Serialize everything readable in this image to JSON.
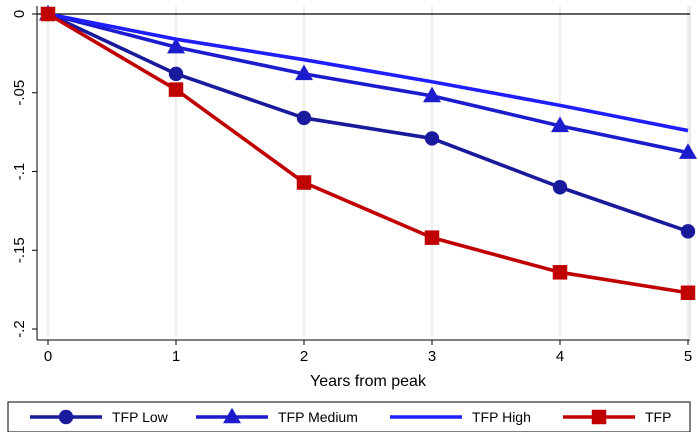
{
  "chart_data": {
    "type": "line",
    "title": "",
    "xlabel": "Years from peak",
    "ylabel": "",
    "x": [
      0,
      1,
      2,
      3,
      4,
      5
    ],
    "xlim": [
      0,
      5
    ],
    "ylim": [
      -0.2,
      0
    ],
    "x_ticks": [
      0,
      1,
      2,
      3,
      4,
      5
    ],
    "x_tick_labels": [
      "0",
      "1",
      "2",
      "3",
      "4",
      "5"
    ],
    "y_ticks": [
      0,
      -0.05,
      -0.1,
      -0.15,
      -0.2
    ],
    "y_tick_labels": [
      "0",
      "-.05",
      "-.1",
      "-.15",
      "-.2"
    ],
    "grid": true,
    "grid_axis": "x",
    "reference_line_y": 0,
    "legend_position": "bottom",
    "series": [
      {
        "name": "TFP Low",
        "values": [
          0,
          -0.038,
          -0.066,
          -0.079,
          -0.11,
          -0.138
        ],
        "color": "#1a1a9c",
        "marker": "circle"
      },
      {
        "name": "TFP Medium",
        "values": [
          0,
          -0.021,
          -0.038,
          -0.052,
          -0.071,
          -0.088
        ],
        "color": "#1c1ccc",
        "marker": "triangle"
      },
      {
        "name": "TFP High",
        "values": [
          0,
          -0.016,
          -0.029,
          -0.043,
          -0.058,
          -0.074
        ],
        "color": "#1e1eff",
        "marker": "none"
      },
      {
        "name": "TFP",
        "values": [
          0,
          -0.048,
          -0.107,
          -0.142,
          -0.164,
          -0.177
        ],
        "color": "#c00000",
        "marker": "square"
      }
    ]
  }
}
